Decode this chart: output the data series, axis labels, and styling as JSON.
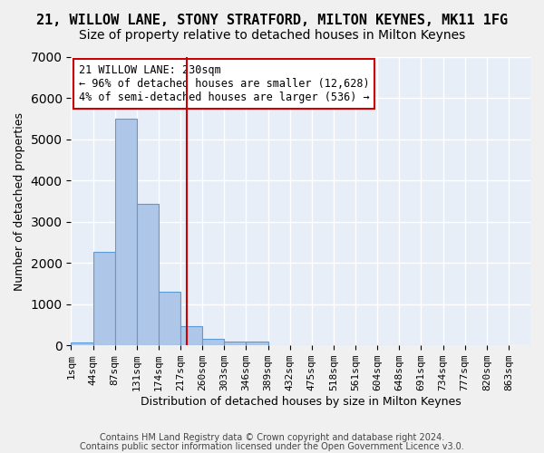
{
  "title": "21, WILLOW LANE, STONY STRATFORD, MILTON KEYNES, MK11 1FG",
  "subtitle": "Size of property relative to detached houses in Milton Keynes",
  "xlabel": "Distribution of detached houses by size in Milton Keynes",
  "ylabel": "Number of detached properties",
  "footer_line1": "Contains HM Land Registry data © Crown copyright and database right 2024.",
  "footer_line2": "Contains public sector information licensed under the Open Government Licence v3.0.",
  "bin_labels": [
    "1sqm",
    "44sqm",
    "87sqm",
    "131sqm",
    "174sqm",
    "217sqm",
    "260sqm",
    "303sqm",
    "346sqm",
    "389sqm",
    "432sqm",
    "475sqm",
    "518sqm",
    "561sqm",
    "604sqm",
    "648sqm",
    "691sqm",
    "734sqm",
    "777sqm",
    "820sqm",
    "863sqm"
  ],
  "bar_values": [
    75,
    2280,
    5500,
    3430,
    1310,
    460,
    160,
    90,
    90,
    0,
    0,
    0,
    0,
    0,
    0,
    0,
    0,
    0,
    0,
    0
  ],
  "bar_color": "#aec6e8",
  "bar_edge_color": "#5b9bd5",
  "annotation_box_text": "21 WILLOW LANE: 230sqm\n← 96% of detached houses are smaller (12,628)\n4% of semi-detached houses are larger (536) →",
  "vline_color": "#cc0000",
  "ylim": [
    0,
    7000
  ],
  "background_color": "#e8eef7",
  "grid_color": "#ffffff",
  "title_fontsize": 11,
  "subtitle_fontsize": 10,
  "label_fontsize": 9,
  "tick_fontsize": 8,
  "footer_fontsize": 7
}
